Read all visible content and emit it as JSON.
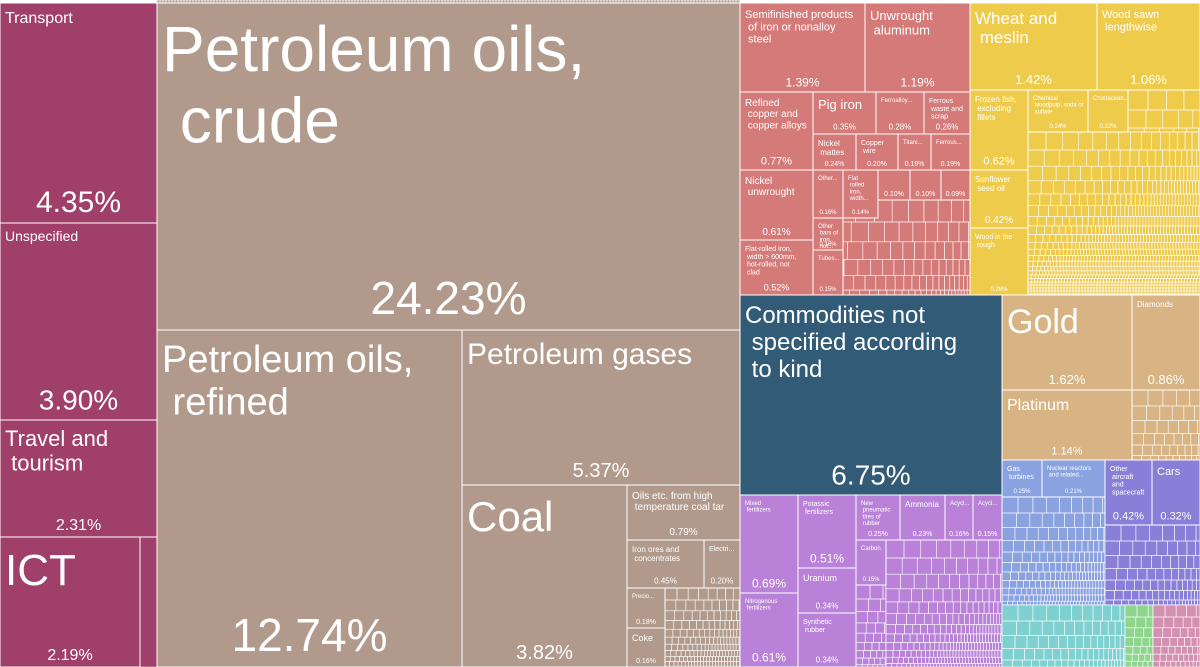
{
  "chart_data": {
    "type": "treemap",
    "tiles": [
      {
        "name": "Transport",
        "value": 4.35,
        "value_label": "4.35%",
        "color": "#a03f69"
      },
      {
        "name": "Unspecified",
        "value": 3.9,
        "value_label": "3.90%",
        "color": "#a03f69"
      },
      {
        "name": "Travel and tourism",
        "value": 2.31,
        "value_label": "2.31%",
        "color": "#a03f69"
      },
      {
        "name": "ICT",
        "value": 2.19,
        "value_label": "2.19%",
        "color": "#a03f69"
      },
      {
        "name": "Petroleum oils, crude",
        "value": 24.23,
        "value_label": "24.23%",
        "color": "#b19a8c"
      },
      {
        "name": "Petroleum oils, refined",
        "value": 12.74,
        "value_label": "12.74%",
        "color": "#b19a8c"
      },
      {
        "name": "Petroleum gases",
        "value": 5.37,
        "value_label": "5.37%",
        "color": "#b19a8c"
      },
      {
        "name": "Coal",
        "value": 3.82,
        "value_label": "3.82%",
        "color": "#b19a8c"
      },
      {
        "name": "Oils etc. from high temperature coal tar",
        "value": 0.79,
        "value_label": "0.79%",
        "color": "#b19a8c"
      },
      {
        "name": "Iron ores and concentrates",
        "value": 0.45,
        "value_label": "0.45%",
        "color": "#b19a8c"
      },
      {
        "name": "Electri...",
        "value": 0.2,
        "value_label": "0.20%",
        "color": "#b19a8c"
      },
      {
        "name": "Precio...",
        "value": 0.18,
        "value_label": "0.18%",
        "color": "#b19a8c"
      },
      {
        "name": "Coke",
        "value": 0.16,
        "value_label": "0.16%",
        "color": "#b19a8c"
      },
      {
        "name": "Semifinished products of iron or nonalloy steel",
        "value": 1.39,
        "value_label": "1.39%",
        "color": "#d47a79"
      },
      {
        "name": "Unwrought aluminum",
        "value": 1.19,
        "value_label": "1.19%",
        "color": "#d47a79"
      },
      {
        "name": "Refined copper and copper alloys",
        "value": 0.77,
        "value_label": "0.77%",
        "color": "#d47a79"
      },
      {
        "name": "Pig iron",
        "value": 0.35,
        "value_label": "0.35%",
        "color": "#d47a79"
      },
      {
        "name": "Ferroalloy...",
        "value": 0.28,
        "value_label": "0.28%",
        "color": "#d47a79"
      },
      {
        "name": "Ferrous waste and scrap",
        "value": 0.26,
        "value_label": "0.26%",
        "color": "#d47a79"
      },
      {
        "name": "Nickel mattes",
        "value": 0.24,
        "value_label": "0.24%",
        "color": "#d47a79"
      },
      {
        "name": "Copper wire",
        "value": 0.2,
        "value_label": "0.20%",
        "color": "#d47a79"
      },
      {
        "name": "Titani...",
        "value": 0.19,
        "value_label": "0.19%",
        "color": "#d47a79"
      },
      {
        "name": "Ferrous...",
        "value": 0.19,
        "value_label": "0.19%",
        "color": "#d47a79"
      },
      {
        "name": "Nickel unwrought",
        "value": 0.61,
        "value_label": "0.61%",
        "color": "#d47a79"
      },
      {
        "name": "Flat-rolled iron, width > 600mm, hot-rolled, not clad",
        "value": 0.52,
        "value_label": "0.52%",
        "color": "#d47a79"
      },
      {
        "name": "Other...",
        "value": 0.16,
        "value_label": "0.16%",
        "color": "#d47a79"
      },
      {
        "name": "Flat rolled iron, width...",
        "value": 0.14,
        "value_label": "0.14%",
        "color": "#d47a79"
      },
      {
        "value": 0.1,
        "value_label": "0.10%",
        "color": "#d47a79"
      },
      {
        "value": 0.1,
        "value_label": "0.10%",
        "color": "#d47a79"
      },
      {
        "value": 0.09,
        "value_label": "0.09%",
        "color": "#d47a79"
      },
      {
        "name": "Other bars of iron, not...",
        "value": 0.16,
        "value_label": "0.16%",
        "color": "#d47a79"
      },
      {
        "name": "Tubes...",
        "value": 0.15,
        "value_label": "0.15%",
        "color": "#d47a79"
      },
      {
        "name": "Wheat and meslin",
        "value": 1.42,
        "value_label": "1.42%",
        "color": "#efcb4c"
      },
      {
        "name": "Wood sawn lengthwise",
        "value": 1.06,
        "value_label": "1.06%",
        "color": "#efcb4c"
      },
      {
        "name": "Frozen fish, excluding fillets",
        "value": 0.62,
        "value_label": "0.62%",
        "color": "#efcb4c"
      },
      {
        "name": "Chemical woodpulp, soda or sulfate",
        "value": 0.24,
        "value_label": "0.24%",
        "color": "#efcb4c"
      },
      {
        "name": "Crustacean...",
        "value": 0.22,
        "value_label": "0.22%",
        "color": "#efcb4c"
      },
      {
        "name": "Sunflower seed oil",
        "value": 0.42,
        "value_label": "0.42%",
        "color": "#efcb4c"
      },
      {
        "name": "Wood in the rough",
        "value": 0.28,
        "value_label": "0.28%",
        "color": "#efcb4c"
      },
      {
        "name": "Commodities not specified according to kind",
        "value": 6.75,
        "value_label": "6.75%",
        "color": "#325b78"
      },
      {
        "name": "Gold",
        "value": 1.62,
        "value_label": "1.62%",
        "color": "#d8b383"
      },
      {
        "name": "Diamonds",
        "value": 0.86,
        "value_label": "0.86%",
        "color": "#d8b383"
      },
      {
        "name": "Platinum",
        "value": 1.14,
        "value_label": "1.14%",
        "color": "#d8b383"
      },
      {
        "name": "Gas turbines",
        "value": 0.25,
        "value_label": "0.25%",
        "color": "#8aa2e0"
      },
      {
        "name": "Nuclear reactors and related...",
        "value": 0.21,
        "value_label": "0.21%",
        "color": "#8aa2e0"
      },
      {
        "name": "Other aircraft and spacecraft",
        "value": 0.42,
        "value_label": "0.42%",
        "color": "#8a7fd8"
      },
      {
        "name": "Cars",
        "value": 0.32,
        "value_label": "0.32%",
        "color": "#8a7fd8"
      },
      {
        "name": "Mixed fertilizers",
        "value": 0.69,
        "value_label": "0.69%",
        "color": "#b982d8"
      },
      {
        "name": "Nitrogenous fertilizers",
        "value": 0.61,
        "value_label": "0.61%",
        "color": "#b982d8"
      },
      {
        "name": "Potassic fertilizers",
        "value": 0.51,
        "value_label": "0.51%",
        "color": "#b982d8"
      },
      {
        "name": "Uranium",
        "value": 0.34,
        "value_label": "0.34%",
        "color": "#b982d8"
      },
      {
        "name": "Synthetic rubber",
        "value": 0.34,
        "value_label": "0.34%",
        "color": "#b982d8"
      },
      {
        "name": "New pneumatic tires of rubber",
        "value": 0.25,
        "value_label": "0.25%",
        "color": "#b982d8"
      },
      {
        "name": "Ammonia",
        "value": 0.23,
        "value_label": "0.23%",
        "color": "#b982d8"
      },
      {
        "name": "Acycl...",
        "value": 0.16,
        "value_label": "0.16%",
        "color": "#b982d8"
      },
      {
        "name": "Acycl...",
        "value": 0.15,
        "value_label": "0.15%",
        "color": "#b982d8"
      },
      {
        "name": "Carbon",
        "value": 0.15,
        "value_label": "0.15%",
        "color": "#b982d8"
      }
    ]
  }
}
